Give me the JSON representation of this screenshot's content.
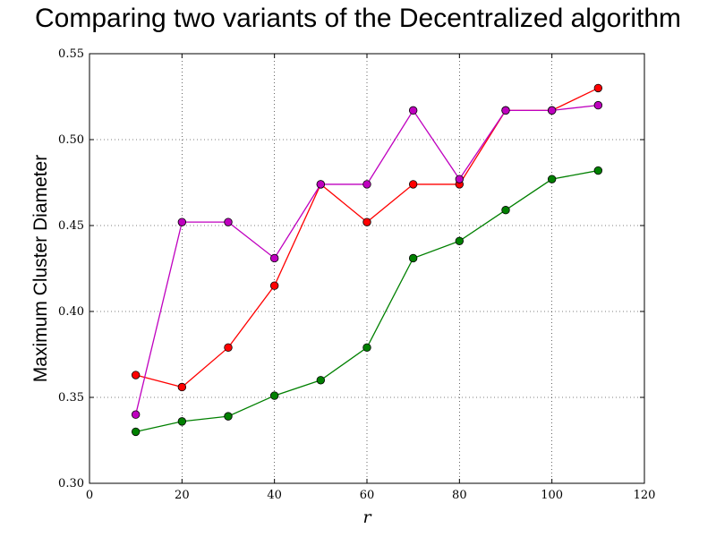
{
  "chart_data": {
    "type": "line",
    "title": "Comparing two variants of the Decentralized algorithm",
    "xlabel": "r",
    "ylabel": "Maximum Cluster Diameter",
    "xlim": [
      0,
      120
    ],
    "ylim": [
      0.3,
      0.55
    ],
    "x_ticks": [
      "0",
      "20",
      "40",
      "60",
      "80",
      "100",
      "120"
    ],
    "y_ticks": [
      "0.30",
      "0.35",
      "0.40",
      "0.45",
      "0.50",
      "0.55"
    ],
    "grid": true,
    "x": [
      10,
      20,
      30,
      40,
      50,
      60,
      70,
      80,
      90,
      100,
      110
    ],
    "series": [
      {
        "color": "#ff0000",
        "values": [
          0.363,
          0.356,
          0.379,
          0.415,
          0.474,
          0.452,
          0.474,
          0.474,
          0.517,
          0.517,
          0.53
        ]
      },
      {
        "color": "#bf00bf",
        "values": [
          0.34,
          0.452,
          0.452,
          0.431,
          0.474,
          0.474,
          0.517,
          0.477,
          0.517,
          0.517,
          0.52
        ]
      },
      {
        "color": "#008000",
        "values": [
          0.33,
          0.336,
          0.339,
          0.351,
          0.36,
          0.379,
          0.431,
          0.441,
          0.459,
          0.477,
          0.482
        ]
      }
    ]
  }
}
